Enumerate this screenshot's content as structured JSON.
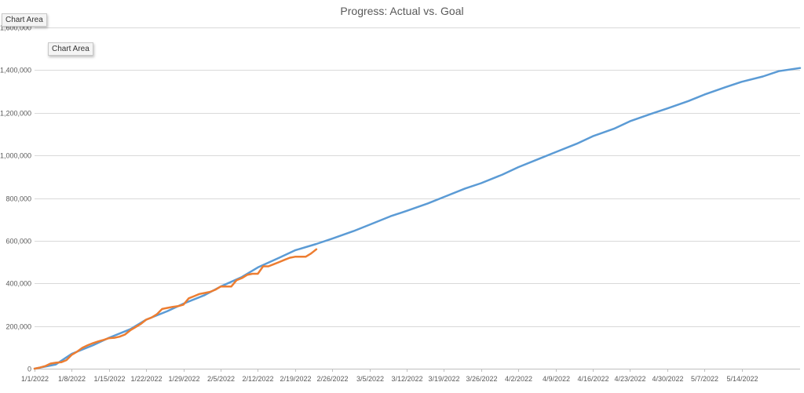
{
  "tooltips": [
    "Chart Area",
    "Chart Area"
  ],
  "chart_data": {
    "type": "line",
    "title": "Progress: Actual vs. Goal",
    "xlabel": "",
    "ylabel": "",
    "ylim": [
      0,
      1600000
    ],
    "y_ticks": [
      0,
      200000,
      400000,
      600000,
      800000,
      1000000,
      1200000,
      1400000,
      1600000
    ],
    "y_tick_labels": [
      "0",
      "200,000",
      "400,000",
      "600,000",
      "800,000",
      "1,000,000",
      "1,200,000",
      "1,400,000",
      "1,600,000"
    ],
    "x_tick_labels": [
      "1/1/2022",
      "1/8/2022",
      "1/15/2022",
      "1/22/2022",
      "1/29/2022",
      "2/5/2022",
      "2/12/2022",
      "2/19/2022",
      "2/26/2022",
      "3/5/2022",
      "3/12/2022",
      "3/19/2022",
      "3/26/2022",
      "4/2/2022",
      "4/9/2022",
      "4/16/2022",
      "4/23/2022",
      "4/30/2022",
      "5/7/2022",
      "5/14/2022"
    ],
    "x_start": "1/1/2022",
    "x_end": "5/25/2022",
    "grid": true,
    "legend": "none",
    "series": [
      {
        "color": "#5B9BD5",
        "x": [
          "1/1/2022",
          "1/5/2022",
          "1/8/2022",
          "1/12/2022",
          "1/15/2022",
          "1/19/2022",
          "1/22/2022",
          "1/26/2022",
          "1/29/2022",
          "2/2/2022",
          "2/5/2022",
          "2/9/2022",
          "2/12/2022",
          "2/16/2022",
          "2/19/2022",
          "2/23/2022",
          "2/26/2022",
          "3/2/2022",
          "3/5/2022",
          "3/9/2022",
          "3/12/2022",
          "3/16/2022",
          "3/19/2022",
          "3/23/2022",
          "3/26/2022",
          "3/30/2022",
          "4/2/2022",
          "4/6/2022",
          "4/9/2022",
          "4/13/2022",
          "4/16/2022",
          "4/20/2022",
          "4/23/2022",
          "4/27/2022",
          "4/30/2022",
          "5/4/2022",
          "5/7/2022",
          "5/11/2022",
          "5/14/2022",
          "5/18/2022",
          "5/21/2022",
          "5/25/2022"
        ],
        "values": [
          0,
          20000,
          70000,
          110000,
          145000,
          185000,
          230000,
          270000,
          305000,
          345000,
          385000,
          430000,
          475000,
          520000,
          555000,
          585000,
          610000,
          645000,
          675000,
          715000,
          740000,
          775000,
          805000,
          845000,
          870000,
          910000,
          945000,
          985000,
          1015000,
          1055000,
          1090000,
          1125000,
          1160000,
          1195000,
          1220000,
          1255000,
          1285000,
          1320000,
          1345000,
          1370000,
          1395000,
          1410000
        ]
      },
      {
        "color": "#ED7D31",
        "x": [
          "1/1/2022",
          "1/2/2022",
          "1/3/2022",
          "1/4/2022",
          "1/5/2022",
          "1/6/2022",
          "1/7/2022",
          "1/8/2022",
          "1/9/2022",
          "1/10/2022",
          "1/11/2022",
          "1/12/2022",
          "1/13/2022",
          "1/14/2022",
          "1/15/2022",
          "1/16/2022",
          "1/17/2022",
          "1/18/2022",
          "1/19/2022",
          "1/20/2022",
          "1/21/2022",
          "1/22/2022",
          "1/23/2022",
          "1/24/2022",
          "1/25/2022",
          "1/26/2022",
          "1/27/2022",
          "1/28/2022",
          "1/29/2022",
          "1/30/2022",
          "1/31/2022",
          "2/1/2022",
          "2/2/2022",
          "2/3/2022",
          "2/4/2022",
          "2/5/2022",
          "2/6/2022",
          "2/7/2022",
          "2/8/2022",
          "2/9/2022",
          "2/10/2022",
          "2/11/2022",
          "2/12/2022",
          "2/13/2022",
          "2/14/2022",
          "2/15/2022",
          "2/16/2022",
          "2/17/2022",
          "2/18/2022",
          "2/19/2022",
          "2/20/2022",
          "2/21/2022",
          "2/22/2022",
          "2/23/2022"
        ],
        "values": [
          0,
          5000,
          12000,
          24000,
          28000,
          30000,
          40000,
          65000,
          80000,
          98000,
          110000,
          120000,
          128000,
          135000,
          143000,
          145000,
          150000,
          160000,
          180000,
          195000,
          210000,
          230000,
          240000,
          255000,
          280000,
          285000,
          290000,
          293000,
          300000,
          330000,
          340000,
          350000,
          355000,
          360000,
          370000,
          385000,
          385000,
          385000,
          415000,
          425000,
          440000,
          445000,
          445000,
          480000,
          480000,
          490000,
          500000,
          510000,
          520000,
          525000,
          525000,
          525000,
          540000,
          560000
        ]
      }
    ]
  }
}
